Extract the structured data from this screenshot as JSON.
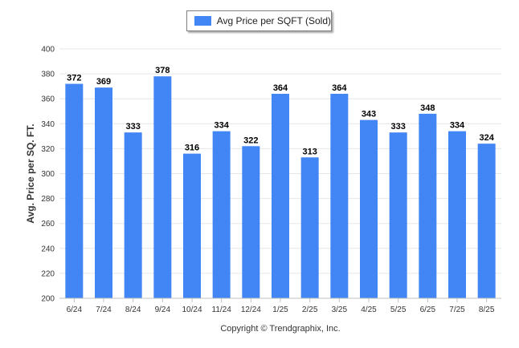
{
  "colors": {
    "bar": "#4285f4",
    "grid": "#e6e6e6",
    "axis": "#c0c0c0"
  },
  "chart_data": {
    "type": "bar",
    "categories": [
      "6/24",
      "7/24",
      "8/24",
      "9/24",
      "10/24",
      "11/24",
      "12/24",
      "1/25",
      "2/25",
      "3/25",
      "4/25",
      "5/25",
      "6/25",
      "7/25",
      "8/25"
    ],
    "series": [
      {
        "name": "Avg Price per SQFT (Sold)",
        "values": [
          372,
          369,
          333,
          378,
          316,
          334,
          322,
          364,
          313,
          364,
          343,
          333,
          348,
          334,
          324
        ]
      }
    ],
    "title": "",
    "xlabel": "",
    "ylabel": "Avg. Price per SQ. FT.",
    "ylim": [
      200,
      400
    ],
    "yticks": [
      200,
      220,
      240,
      260,
      280,
      300,
      320,
      340,
      360,
      380,
      400
    ],
    "grid": true,
    "legend_position": "top-center",
    "data_labels": true
  },
  "footer": {
    "copyright": "Copyright © Trendgraphix, Inc."
  }
}
